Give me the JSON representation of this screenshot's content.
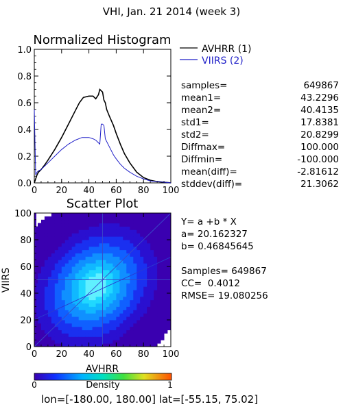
{
  "figure": {
    "title": "VHI,  Jan. 21 2014 (week 3)",
    "footer": "lon=[-180.00, 180.00] lat=[-55.15, 75.02]"
  },
  "histogram": {
    "title": "Normalized Histogram",
    "legend": [
      {
        "label": "AVHRR (1)",
        "color": "#000000"
      },
      {
        "label": "VIIRS (2)",
        "color": "#1f1fc8"
      }
    ]
  },
  "stats": [
    {
      "label": "samples=",
      "value": "649867"
    },
    {
      "label": "mean1=",
      "value": "43.2296"
    },
    {
      "label": "mean2=",
      "value": "40.4135"
    },
    {
      "label": "std1=",
      "value": "17.8381"
    },
    {
      "label": "std2=",
      "value": "20.8299"
    },
    {
      "label": "Diffmax=",
      "value": "100.000"
    },
    {
      "label": "Diffmin=",
      "value": "-100.000"
    },
    {
      "label": "mean(diff)=",
      "value": "-2.81612"
    },
    {
      "label": "stddev(diff)=",
      "value": "21.3062"
    }
  ],
  "scatter": {
    "title": "Scatter Plot"
  },
  "fit": {
    "equation": "Y= a +b * X",
    "a": "a= 20.162327",
    "b": "b= 0.46845645",
    "samples": "Samples= 649867",
    "cc": "CC=  0.4012",
    "rmse": "RMSE= 19.080256"
  },
  "colorbar": {
    "label": "Density",
    "min": "0",
    "max": "1"
  },
  "chart_data": [
    {
      "type": "line",
      "title": "Normalized Histogram",
      "xlim": [
        0,
        100
      ],
      "ylim": [
        0,
        1.0
      ],
      "x_ticks": [
        "0",
        "20",
        "40",
        "60",
        "80",
        "100"
      ],
      "y_ticks": [
        "0.0",
        "0.2",
        "0.4",
        "0.6",
        "0.8",
        "1.0"
      ],
      "grid": false,
      "legend_position": "outside-right",
      "series": [
        {
          "name": "AVHRR (1)",
          "color": "#000000",
          "x": [
            0,
            1,
            2,
            3,
            5,
            8,
            10,
            15,
            20,
            25,
            30,
            33,
            36,
            40,
            43,
            45,
            47,
            48,
            49,
            50,
            51,
            52,
            53,
            55,
            58,
            60,
            63,
            66,
            70,
            75,
            80,
            85,
            90,
            95,
            98,
            100
          ],
          "y": [
            0.0,
            0.03,
            0.06,
            0.08,
            0.1,
            0.14,
            0.17,
            0.25,
            0.34,
            0.44,
            0.54,
            0.6,
            0.64,
            0.65,
            0.65,
            0.63,
            0.66,
            0.7,
            0.69,
            0.68,
            0.62,
            0.6,
            0.55,
            0.5,
            0.43,
            0.37,
            0.29,
            0.22,
            0.15,
            0.08,
            0.04,
            0.02,
            0.01,
            0.005,
            0.002,
            0.0
          ]
        },
        {
          "name": "VIIRS (2)",
          "color": "#1f1fc8",
          "x": [
            0,
            1,
            2,
            3,
            5,
            8,
            10,
            15,
            20,
            25,
            30,
            35,
            40,
            43,
            45,
            47,
            48,
            49,
            50,
            51,
            52,
            55,
            58,
            60,
            63,
            66,
            70,
            75,
            80,
            85,
            90,
            95,
            100
          ],
          "y": [
            0.55,
            0.06,
            0.08,
            0.09,
            0.1,
            0.13,
            0.15,
            0.2,
            0.25,
            0.29,
            0.32,
            0.34,
            0.34,
            0.33,
            0.32,
            0.3,
            0.29,
            0.44,
            0.44,
            0.43,
            0.33,
            0.27,
            0.21,
            0.18,
            0.14,
            0.11,
            0.08,
            0.05,
            0.03,
            0.015,
            0.01,
            0.005,
            0.0
          ]
        }
      ]
    },
    {
      "type": "heatmap",
      "title": "Scatter Plot",
      "xlabel": "AVHRR",
      "ylabel": "VIIRS",
      "xlim": [
        0,
        100
      ],
      "ylim": [
        0,
        100
      ],
      "x_ticks": [
        "0",
        "20",
        "40",
        "60",
        "80",
        "100"
      ],
      "y_ticks": [
        "0",
        "20",
        "40",
        "60",
        "80",
        "100"
      ],
      "colormap": "rainbow",
      "colorbar_label": "Density",
      "colorbar_range": [
        0,
        1
      ],
      "density_center": [
        45,
        45
      ],
      "reference_lines": [
        {
          "type": "diagonal",
          "from": [
            0,
            0
          ],
          "to": [
            100,
            100
          ]
        },
        {
          "type": "vertical",
          "x": 50
        },
        {
          "type": "horizontal",
          "y": 50
        },
        {
          "type": "fit",
          "intercept": 20.162327,
          "slope": 0.46845645
        }
      ]
    }
  ]
}
